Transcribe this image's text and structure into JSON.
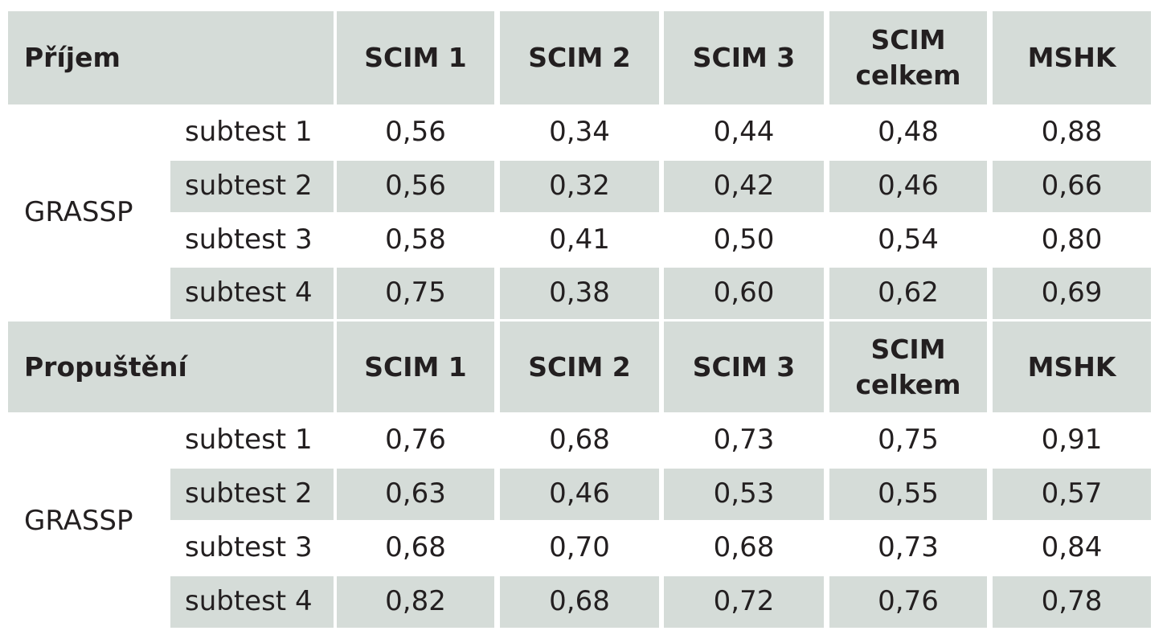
{
  "sections": [
    {
      "title": "Příjem",
      "columns": [
        "SCIM 1",
        "SCIM 2",
        "SCIM 3",
        "SCIM celkem",
        "MSHK"
      ],
      "group_label": "GRASSP",
      "rows": [
        {
          "label": "subtest 1",
          "values": [
            "0,56",
            "0,34",
            "0,44",
            "0,48",
            "0,88"
          ]
        },
        {
          "label": "subtest 2",
          "values": [
            "0,56",
            "0,32",
            "0,42",
            "0,46",
            "0,66"
          ]
        },
        {
          "label": "subtest 3",
          "values": [
            "0,58",
            "0,41",
            "0,50",
            "0,54",
            "0,80"
          ]
        },
        {
          "label": "subtest 4",
          "values": [
            "0,75",
            "0,38",
            "0,60",
            "0,62",
            "0,69"
          ]
        }
      ]
    },
    {
      "title": "Propuštění",
      "columns": [
        "SCIM 1",
        "SCIM 2",
        "SCIM 3",
        "SCIM celkem",
        "MSHK"
      ],
      "group_label": "GRASSP",
      "rows": [
        {
          "label": "subtest 1",
          "values": [
            "0,76",
            "0,68",
            "0,73",
            "0,75",
            "0,91"
          ]
        },
        {
          "label": "subtest 2",
          "values": [
            "0,63",
            "0,46",
            "0,53",
            "0,55",
            "0,57"
          ]
        },
        {
          "label": "subtest 3",
          "values": [
            "0,68",
            "0,70",
            "0,68",
            "0,73",
            "0,84"
          ]
        },
        {
          "label": "subtest 4",
          "values": [
            "0,82",
            "0,68",
            "0,72",
            "0,76",
            "0,78"
          ]
        }
      ]
    }
  ],
  "colors": {
    "shade": "#d5dcd8",
    "text": "#231f20",
    "background": "#ffffff"
  }
}
